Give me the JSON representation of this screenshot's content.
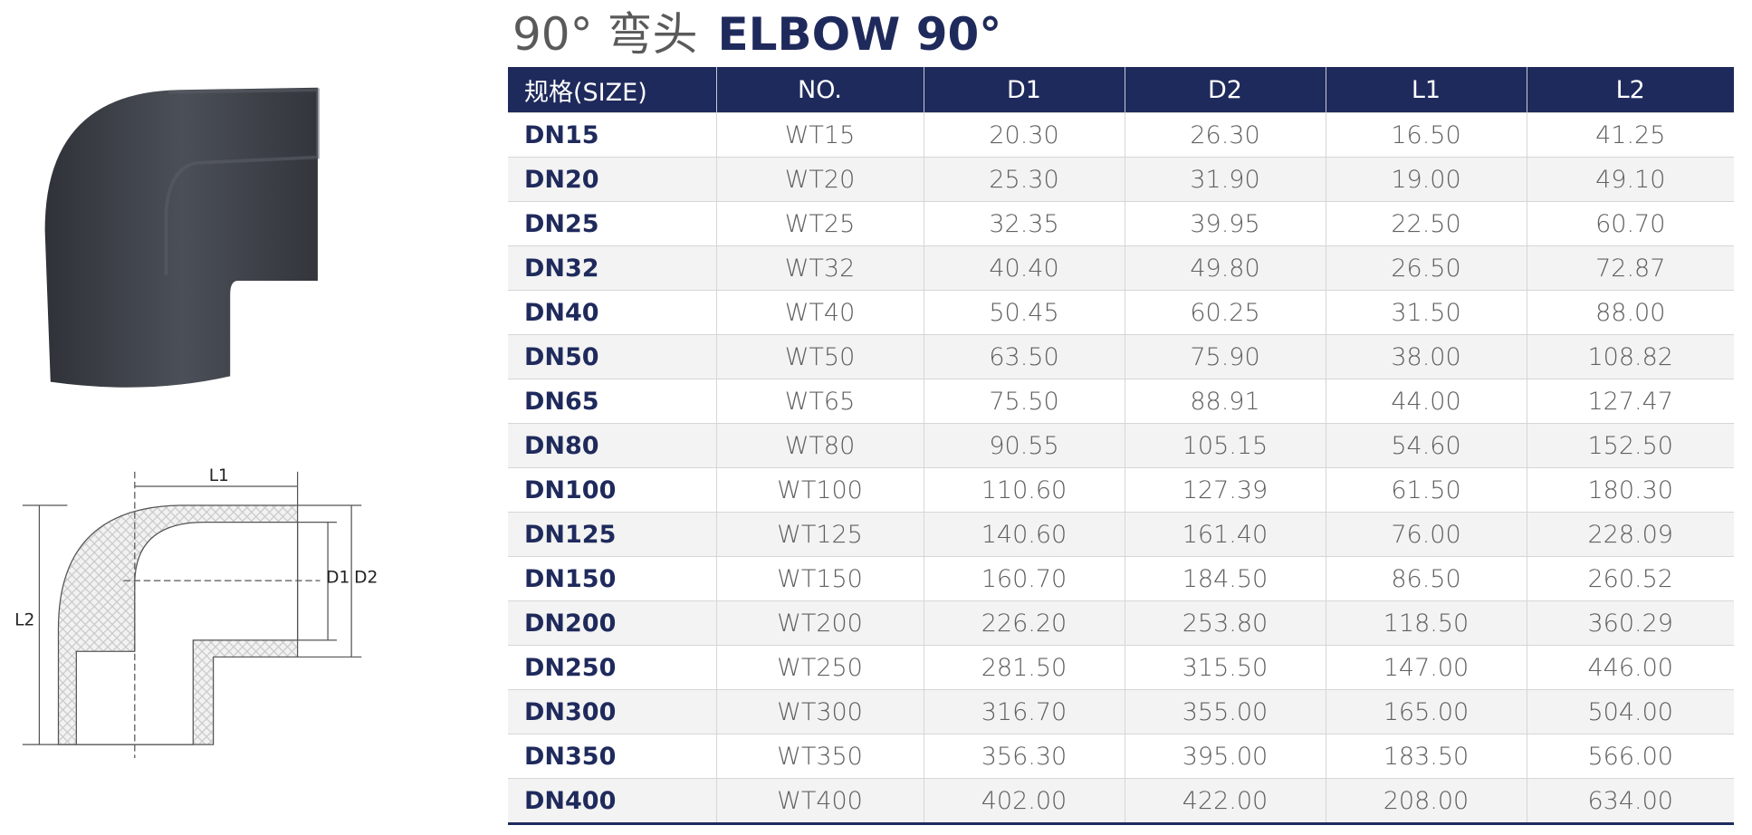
{
  "header": {
    "title_cn": "90° 弯头",
    "title_en": "ELBOW 90°"
  },
  "diagram": {
    "labels": [
      "L1",
      "L2",
      "D1",
      "D2"
    ]
  },
  "table": {
    "columns": [
      "规格(SIZE)",
      "NO.",
      "D1",
      "D2",
      "L1",
      "L2"
    ],
    "rows": [
      [
        "DN15",
        "WT15",
        "20.30",
        "26.30",
        "16.50",
        "41.25"
      ],
      [
        "DN20",
        "WT20",
        "25.30",
        "31.90",
        "19.00",
        "49.10"
      ],
      [
        "DN25",
        "WT25",
        "32.35",
        "39.95",
        "22.50",
        "60.70"
      ],
      [
        "DN32",
        "WT32",
        "40.40",
        "49.80",
        "26.50",
        "72.87"
      ],
      [
        "DN40",
        "WT40",
        "50.45",
        "60.25",
        "31.50",
        "88.00"
      ],
      [
        "DN50",
        "WT50",
        "63.50",
        "75.90",
        "38.00",
        "108.82"
      ],
      [
        "DN65",
        "WT65",
        "75.50",
        "88.91",
        "44.00",
        "127.47"
      ],
      [
        "DN80",
        "WT80",
        "90.55",
        "105.15",
        "54.60",
        "152.50"
      ],
      [
        "DN100",
        "WT100",
        "110.60",
        "127.39",
        "61.50",
        "180.30"
      ],
      [
        "DN125",
        "WT125",
        "140.60",
        "161.40",
        "76.00",
        "228.09"
      ],
      [
        "DN150",
        "WT150",
        "160.70",
        "184.50",
        "86.50",
        "260.52"
      ],
      [
        "DN200",
        "WT200",
        "226.20",
        "253.80",
        "118.50",
        "360.29"
      ],
      [
        "DN250",
        "WT250",
        "281.50",
        "315.50",
        "147.00",
        "446.00"
      ],
      [
        "DN300",
        "WT300",
        "316.70",
        "355.00",
        "165.00",
        "504.00"
      ],
      [
        "DN350",
        "WT350",
        "356.30",
        "395.00",
        "183.50",
        "566.00"
      ],
      [
        "DN400",
        "WT400",
        "402.00",
        "422.00",
        "208.00",
        "634.00"
      ]
    ]
  }
}
